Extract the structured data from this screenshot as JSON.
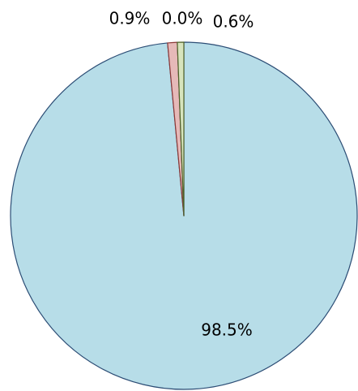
{
  "chart_data": {
    "type": "pie",
    "values": [
      98.5,
      0.9,
      0.0,
      0.6
    ],
    "value_labels": [
      "98.5%",
      "0.9%",
      "0.0%",
      "0.6%"
    ],
    "colors": [
      "#b7dde8",
      "#e6b9b8",
      "#ccc1da",
      "#d7e4bd"
    ],
    "edge_colors": [
      "#2c4d75",
      "#8c3836",
      "#5f497a",
      "#4f6228"
    ]
  }
}
